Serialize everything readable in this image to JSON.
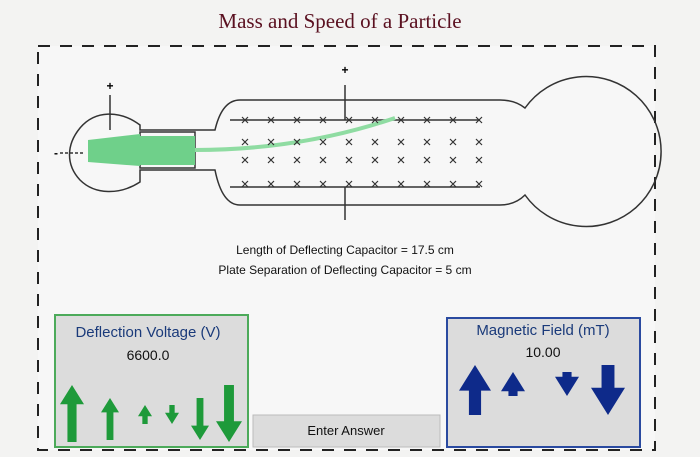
{
  "title": "Mass and Speed of a Particle",
  "tube": {
    "cathode_plus": "+",
    "plate_plus": "+",
    "cathode_minus": "-"
  },
  "capacitor": {
    "length_label": "Length of Deflecting Capacitor = 17.5 cm",
    "separation_label": "Plate Separation of Deflecting Capacitor = 5 cm"
  },
  "deflection": {
    "label": "Deflection Voltage (V)",
    "value": "6600.0"
  },
  "magnetic": {
    "label": "Magnetic Field (mT)",
    "value": "10.00"
  },
  "button": {
    "label": "Enter Answer"
  }
}
